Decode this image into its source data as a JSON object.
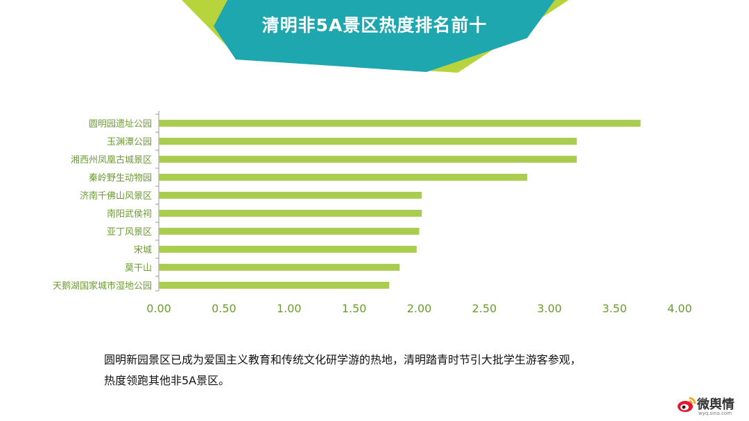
{
  "header": {
    "title": "清明非5A景区热度排名前十",
    "colors": {
      "teal": "#1fa7b0",
      "lime": "#b7d43c"
    }
  },
  "chart_data": {
    "type": "bar",
    "orientation": "horizontal",
    "title": "",
    "categories": [
      "圆明园遗址公园",
      "玉渊潭公园",
      "湘西州凤凰古城景区",
      "秦岭野生动物园",
      "济南千佛山风景区",
      "南阳武侯祠",
      "亚丁风景区",
      "宋城",
      "莫干山",
      "天鹅湖国家城市湿地公园"
    ],
    "values": [
      3.7,
      3.21,
      3.21,
      2.83,
      2.02,
      2.02,
      2.0,
      1.98,
      1.85,
      1.77
    ],
    "xlim": [
      0,
      4
    ],
    "xticks": [
      "0.00",
      "0.50",
      "1.00",
      "1.50",
      "2.00",
      "2.50",
      "3.00",
      "3.50",
      "4.00"
    ],
    "bar_color": "#a8cd4f",
    "tick_color": "#6b9c2f",
    "grid": false
  },
  "caption": {
    "line1": "圆明新园景区已成为爱国主义教育和传统文化研学游的热地，清明踏青时节引大批学生游客参观，",
    "line2": "热度领跑其他非5A景区。"
  },
  "logo": {
    "main": "微舆情",
    "sub": "wyq.sina.com",
    "icon": "weibo-eye-icon"
  }
}
